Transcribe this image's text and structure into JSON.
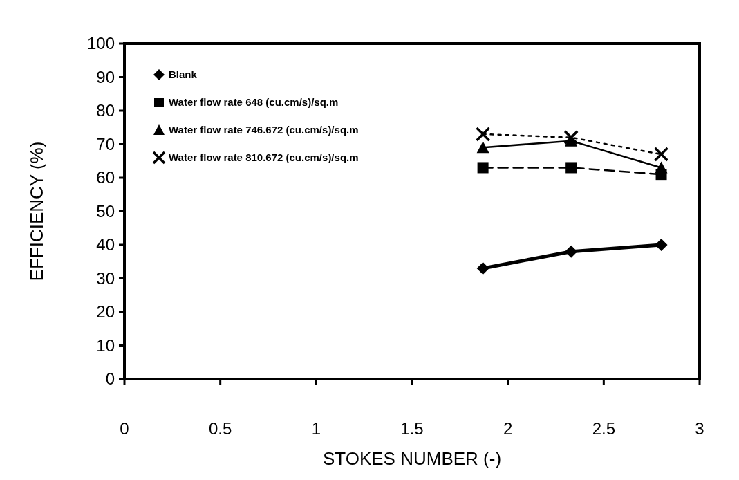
{
  "chart_data": {
    "type": "line",
    "xlabel": "STOKES NUMBER (-)",
    "ylabel": "EFFICIENCY (%)",
    "xlim": [
      0,
      3
    ],
    "xticks": [
      0,
      0.5,
      1,
      1.5,
      2,
      2.5,
      3
    ],
    "ylim": [
      0,
      100
    ],
    "yticks": [
      0,
      10,
      20,
      30,
      40,
      50,
      60,
      70,
      80,
      90,
      100
    ],
    "grid": false,
    "legend": "top left",
    "series": [
      {
        "name": "Blank",
        "color": "#000000",
        "marker": "diamond",
        "line_style": "solid",
        "x": [
          1.87,
          2.33,
          2.8
        ],
        "values": [
          33,
          38,
          40
        ]
      },
      {
        "name": "Water flow rate 648 (cu.cm/s)/sq.m",
        "color": "#000000",
        "marker": "square",
        "line_style": "dashed",
        "x": [
          1.87,
          2.33,
          2.8
        ],
        "values": [
          63,
          63,
          61
        ]
      },
      {
        "name": "Water flow rate 746.672 (cu.cm/s)/sq.m",
        "color": "#000000",
        "marker": "triangle",
        "line_style": "solid",
        "x": [
          1.87,
          2.33,
          2.8
        ],
        "values": [
          69,
          71,
          63
        ]
      },
      {
        "name": "Water flow rate 810.672 (cu.cm/s)/sq.m",
        "color": "#000000",
        "marker": "cross",
        "line_style": "dotted",
        "x": [
          1.87,
          2.33,
          2.8
        ],
        "values": [
          73,
          72,
          67
        ]
      }
    ]
  }
}
